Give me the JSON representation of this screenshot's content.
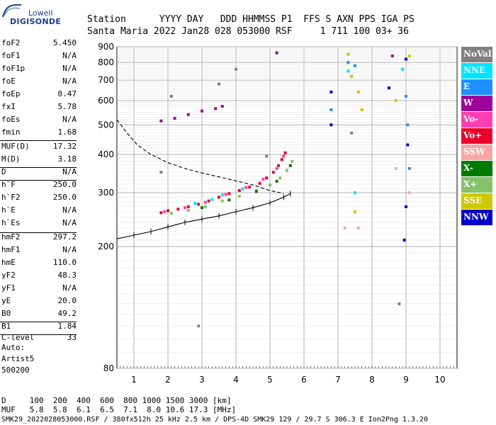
{
  "logo": {
    "top": "Lowell",
    "bottom": "DIGISONDE"
  },
  "header": {
    "row1": "Station      YYYY DAY   DDD HHMMSS P1  FFS S AXN PPS IGA PS",
    "row2": "Santa Maria 2022 Jan28 028 053000 RSF     1 711 100 03+ 36"
  },
  "params": [
    {
      "name": "foF2",
      "value": "5.450"
    },
    {
      "name": "foF1",
      "value": "N/A"
    },
    {
      "name": "foF1p",
      "value": "N/A"
    },
    {
      "name": "foE",
      "value": "N/A"
    },
    {
      "name": "foEp",
      "value": "0.47"
    },
    {
      "name": "fxI",
      "value": "5.78"
    },
    {
      "name": "foEs",
      "value": "N/A"
    },
    {
      "name": "fmin",
      "value": "1.68"
    },
    {
      "name": "MUF(D)",
      "value": "17.32"
    },
    {
      "name": "M(D)",
      "value": "3.18"
    },
    {
      "name": "D",
      "value": "N/A"
    },
    {
      "name": "h`F",
      "value": "250.0"
    },
    {
      "name": "h`F2",
      "value": "250.0"
    },
    {
      "name": "h`E",
      "value": "N/A"
    },
    {
      "name": "h`Es",
      "value": "N/A"
    },
    {
      "name": "hmF2",
      "value": "297.2"
    },
    {
      "name": "hmF1",
      "value": "N/A"
    },
    {
      "name": "hmE",
      "value": "110.0"
    },
    {
      "name": "yF2",
      "value": "48.3"
    },
    {
      "name": "yF1",
      "value": "N/A"
    },
    {
      "name": "yE",
      "value": "20.0"
    },
    {
      "name": "B0",
      "value": "49.2"
    },
    {
      "name": "B1",
      "value": "1.84"
    },
    {
      "name": "C-level",
      "value": "33"
    }
  ],
  "auto": {
    "line1": "Auto:",
    "line2": "Artist5",
    "line3": "500200"
  },
  "legend": [
    {
      "label": "NoVal",
      "color": "#808080"
    },
    {
      "label": "NNE",
      "color": "#00e5ff"
    },
    {
      "label": "E",
      "color": "#1e90ff"
    },
    {
      "label": "W",
      "color": "#a0009a"
    },
    {
      "label": "Vo-",
      "color": "#ff3fb0"
    },
    {
      "label": "Vo+",
      "color": "#e8002a"
    },
    {
      "label": "SSW",
      "color": "#f6a6a6"
    },
    {
      "label": "X-",
      "color": "#007a00"
    },
    {
      "label": "X+",
      "color": "#86c06a"
    },
    {
      "label": "SSE",
      "color": "#d0c800"
    },
    {
      "label": "NNW",
      "color": "#0000c8"
    }
  ],
  "footer": {
    "d_row": "D     100  200  400  600  800 1000 1500 3000 [km]",
    "muf_row": "MUF   5.8  5.8  6.1  6.5  7.1  8.0 10.6 17.3 [MHz]",
    "info": "SMK29_2022028053000.RSF / 380fx512h 25 kHz 2.5 km / DPS-4D SMK29 129 / 29.7 S 306.3 E Ion2Png 1.3.20"
  },
  "chart_data": {
    "type": "scatter",
    "xlabel": "",
    "ylabel": "",
    "xlim": [
      0.5,
      10.5
    ],
    "ylim": [
      80,
      900
    ],
    "xticks": [
      "1",
      "2",
      "3",
      "4",
      "5",
      "6",
      "7",
      "8",
      "9",
      "10"
    ],
    "yticks": [
      "80",
      "200",
      "300",
      "400",
      "500",
      "600",
      "700",
      "800",
      "900"
    ],
    "y_scale": "log",
    "grid": true,
    "series": [
      {
        "name": "Vo+",
        "points": [
          [
            1.8,
            258
          ],
          [
            2.0,
            262
          ],
          [
            2.3,
            265
          ],
          [
            2.6,
            270
          ],
          [
            2.9,
            275
          ],
          [
            3.2,
            282
          ],
          [
            3.5,
            290
          ],
          [
            3.8,
            298
          ],
          [
            4.1,
            305
          ],
          [
            4.4,
            313
          ],
          [
            4.7,
            322
          ],
          [
            4.9,
            335
          ],
          [
            5.1,
            350
          ],
          [
            5.25,
            368
          ],
          [
            5.35,
            385
          ],
          [
            5.45,
            405
          ]
        ]
      },
      {
        "name": "Vo-",
        "points": [
          [
            1.9,
            260
          ],
          [
            2.5,
            268
          ],
          [
            3.1,
            279
          ],
          [
            3.7,
            296
          ],
          [
            4.3,
            312
          ],
          [
            4.8,
            332
          ],
          [
            5.2,
            360
          ],
          [
            5.4,
            395
          ]
        ]
      },
      {
        "name": "X+",
        "points": [
          [
            2.1,
            257
          ],
          [
            2.6,
            263
          ],
          [
            3.1,
            270
          ],
          [
            3.6,
            282
          ],
          [
            4.1,
            292
          ],
          [
            4.6,
            305
          ],
          [
            5.0,
            318
          ],
          [
            5.3,
            335
          ],
          [
            5.5,
            355
          ],
          [
            5.65,
            380
          ]
        ]
      },
      {
        "name": "X-",
        "points": [
          [
            3.0,
            268
          ],
          [
            3.8,
            284
          ],
          [
            4.6,
            303
          ],
          [
            5.2,
            327
          ],
          [
            5.6,
            368
          ]
        ]
      },
      {
        "name": "NNE",
        "points": [
          [
            2.8,
            277
          ],
          [
            3.3,
            285
          ],
          [
            3.6,
            295
          ],
          [
            4.2,
            309
          ],
          [
            7.3,
            750
          ],
          [
            7.5,
            300
          ],
          [
            8.9,
            760
          ]
        ]
      },
      {
        "name": "W",
        "points": [
          [
            1.8,
            515
          ],
          [
            2.2,
            525
          ],
          [
            2.6,
            540
          ],
          [
            3.0,
            555
          ],
          [
            3.4,
            565
          ],
          [
            3.6,
            575
          ],
          [
            5.2,
            860
          ],
          [
            8.6,
            840
          ]
        ]
      },
      {
        "name": "SSE",
        "points": [
          [
            7.3,
            850
          ],
          [
            7.4,
            720
          ],
          [
            7.6,
            640
          ],
          [
            7.7,
            560
          ],
          [
            7.5,
            260
          ],
          [
            8.7,
            600
          ],
          [
            9.1,
            840
          ]
        ]
      },
      {
        "name": "NNW",
        "points": [
          [
            6.8,
            640
          ],
          [
            6.8,
            500
          ],
          [
            8.5,
            660
          ],
          [
            9.0,
            820
          ],
          [
            9.05,
            430
          ],
          [
            9.0,
            270
          ],
          [
            8.95,
            210
          ]
        ]
      },
      {
        "name": "SSW",
        "points": [
          [
            7.2,
            230
          ],
          [
            7.6,
            230
          ],
          [
            8.7,
            360
          ],
          [
            9.1,
            300
          ]
        ]
      },
      {
        "name": "E",
        "points": [
          [
            6.8,
            560
          ],
          [
            7.3,
            800
          ],
          [
            7.5,
            780
          ],
          [
            9.0,
            620
          ],
          [
            9.05,
            500
          ],
          [
            9.1,
            360
          ]
        ]
      },
      {
        "name": "NoVal",
        "points": [
          [
            1.8,
            350
          ],
          [
            2.1,
            620
          ],
          [
            3.5,
            680
          ],
          [
            4.0,
            760
          ],
          [
            4.9,
            395
          ],
          [
            7.4,
            470
          ],
          [
            8.8,
            130
          ],
          [
            2.9,
            110
          ]
        ]
      }
    ],
    "curves": [
      {
        "name": "virtual-height-profile",
        "style": "dashed",
        "points": [
          [
            0.5,
            520
          ],
          [
            0.8,
            470
          ],
          [
            1.1,
            430
          ],
          [
            1.5,
            400
          ],
          [
            2.0,
            376
          ],
          [
            2.5,
            360
          ],
          [
            3.0,
            348
          ],
          [
            3.5,
            338
          ],
          [
            4.0,
            328
          ],
          [
            4.5,
            318
          ],
          [
            5.0,
            305
          ],
          [
            5.4,
            298
          ]
        ]
      },
      {
        "name": "true-height-profile",
        "style": "solid-ticked",
        "points": [
          [
            0.5,
            212
          ],
          [
            1.0,
            218
          ],
          [
            1.5,
            224
          ],
          [
            2.0,
            232
          ],
          [
            2.5,
            240
          ],
          [
            3.0,
            246
          ],
          [
            3.5,
            252
          ],
          [
            4.0,
            260
          ],
          [
            4.5,
            268
          ],
          [
            5.0,
            278
          ],
          [
            5.4,
            290
          ],
          [
            5.6,
            298
          ]
        ]
      }
    ]
  }
}
